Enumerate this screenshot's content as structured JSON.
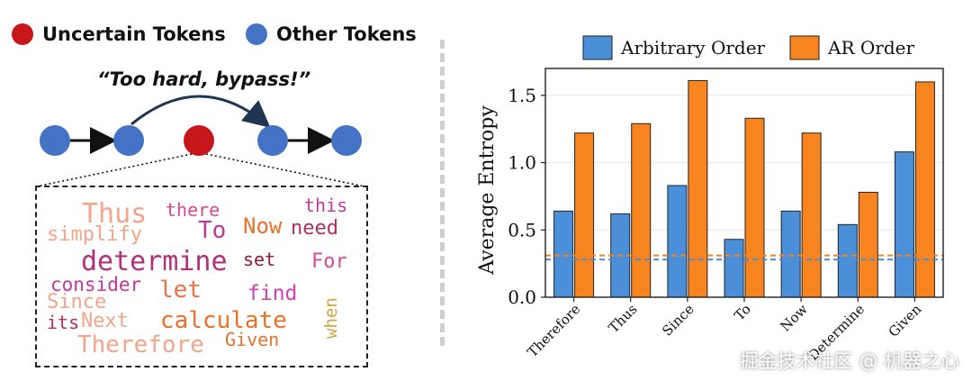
{
  "legend_left": {
    "uncertain_label": "Uncertain Tokens",
    "other_label": "Other Tokens",
    "uncertain_color": "#c8161d",
    "other_color": "#4472c4"
  },
  "quote": "“Too hard, bypass!”",
  "word_cloud": [
    {
      "text": "Thus",
      "color": "#f2a58a"
    },
    {
      "text": "there",
      "color": "#d94a8c"
    },
    {
      "text": "this",
      "color": "#c0399a"
    },
    {
      "text": "To",
      "color": "#c0399a"
    },
    {
      "text": "Now",
      "color": "#e8722a"
    },
    {
      "text": "need",
      "color": "#b03060"
    },
    {
      "text": "simplify",
      "color": "#f2a58a"
    },
    {
      "text": "determine",
      "color": "#b0307a"
    },
    {
      "text": "set",
      "color": "#8b1a3a"
    },
    {
      "text": "For",
      "color": "#d94a8c"
    },
    {
      "text": "consider",
      "color": "#c0399a"
    },
    {
      "text": "let",
      "color": "#e8724a"
    },
    {
      "text": "find",
      "color": "#d040b0"
    },
    {
      "text": "Since",
      "color": "#f2a58a"
    },
    {
      "text": "when",
      "color": "#d4a640"
    },
    {
      "text": "its",
      "color": "#b03060"
    },
    {
      "text": "Next",
      "color": "#f2a58a"
    },
    {
      "text": "calculate",
      "color": "#e8722a"
    },
    {
      "text": "Given",
      "color": "#e8722a"
    },
    {
      "text": "Therefore",
      "color": "#f2a58a"
    }
  ],
  "chart_data": {
    "type": "bar",
    "categories": [
      "Therefore",
      "Thus",
      "Since",
      "To",
      "Now",
      "Determine",
      "Given"
    ],
    "series": [
      {
        "name": "Arbitrary Order",
        "color": "#4a8fd8",
        "values": [
          0.64,
          0.62,
          0.83,
          0.43,
          0.64,
          0.54,
          1.08
        ]
      },
      {
        "name": "AR Order",
        "color": "#f7841f",
        "values": [
          1.22,
          1.29,
          1.61,
          1.33,
          1.22,
          0.78,
          1.6
        ]
      }
    ],
    "reference_lines": [
      {
        "value": 0.31,
        "color": "#f7841f"
      },
      {
        "value": 0.28,
        "color": "#4a8fd8"
      }
    ],
    "ylabel": "Average Entropy",
    "ylim": [
      0,
      1.7
    ],
    "yticks": [
      "0.0",
      "0.5",
      "1.0",
      "1.5"
    ],
    "grid": true,
    "legend_position": "top"
  },
  "watermark": "掘金技术社区 @ 机器之心"
}
